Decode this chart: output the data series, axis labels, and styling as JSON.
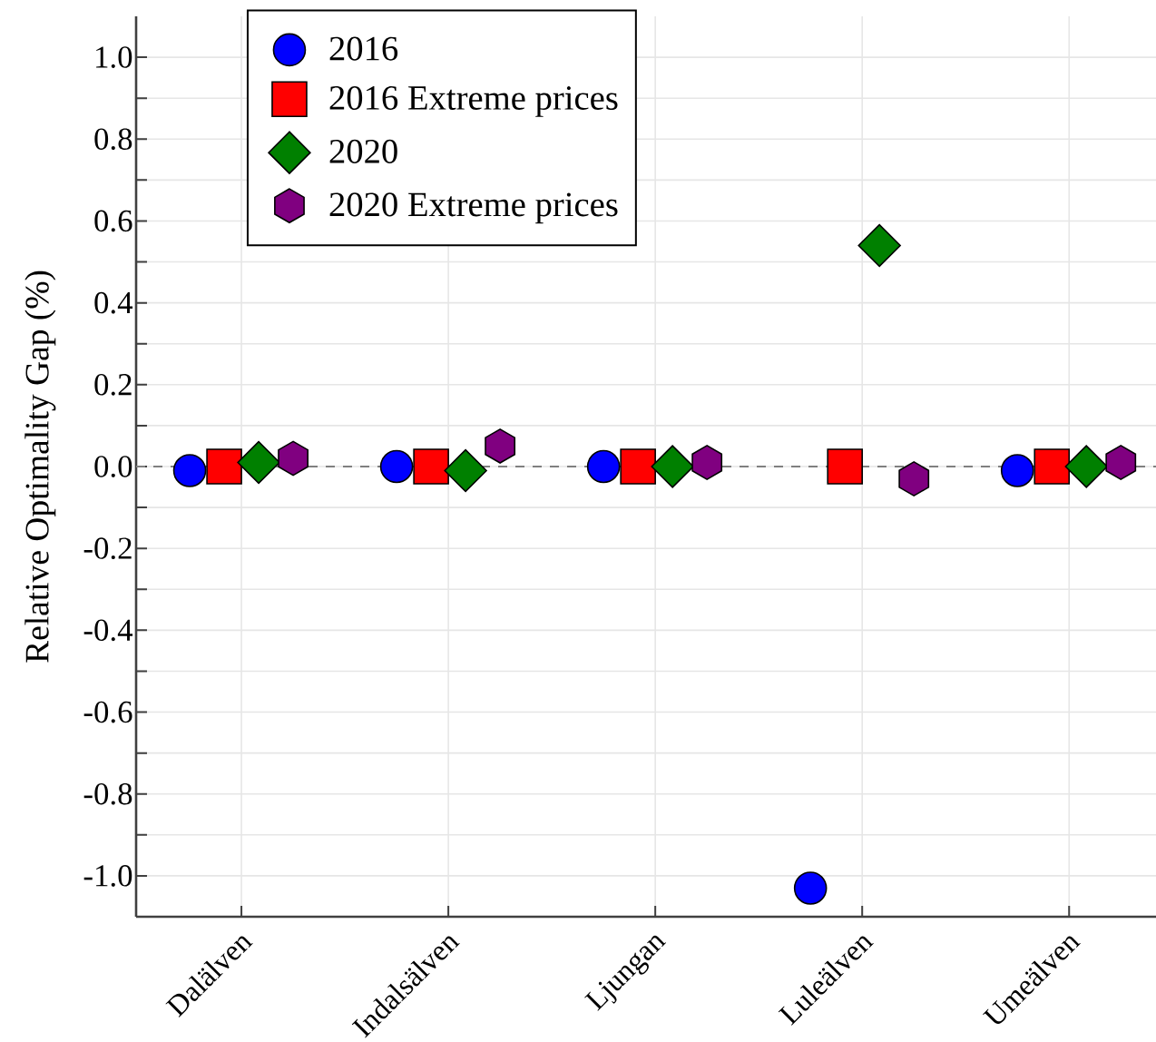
{
  "chart_data": {
    "type": "scatter",
    "ylabel": "Relative Optimality Gap (%)",
    "categories": [
      "Dalälven",
      "Indalsälven",
      "Ljungan",
      "Luleälven",
      "Umeälven"
    ],
    "series": [
      {
        "name": "2016",
        "color": "#0000ff",
        "marker": "circle",
        "values": [
          -0.01,
          0.0,
          0.0,
          -1.03,
          -0.01
        ]
      },
      {
        "name": "2016 Extreme prices",
        "color": "#ff0000",
        "marker": "square",
        "values": [
          0.0,
          0.0,
          0.0,
          0.0,
          0.0
        ]
      },
      {
        "name": "2020",
        "color": "#008000",
        "marker": "diamond",
        "values": [
          0.01,
          -0.01,
          0.0,
          0.54,
          0.0
        ]
      },
      {
        "name": "2020 Extreme prices",
        "color": "#800080",
        "values": [
          0.02,
          0.05,
          0.01,
          -0.03,
          0.01
        ]
      }
    ],
    "ylim": [
      -1.1,
      1.1
    ],
    "yticks": [
      {
        "value": -1.0,
        "label": "-1.0"
      },
      {
        "value": -0.9,
        "label": null
      },
      {
        "value": -0.8,
        "label": "-0.8"
      },
      {
        "value": -0.7,
        "label": null
      },
      {
        "value": -0.6,
        "label": "-0.6"
      },
      {
        "value": -0.5,
        "label": null
      },
      {
        "value": -0.4,
        "label": "-0.4"
      },
      {
        "value": -0.3,
        "label": null
      },
      {
        "value": -0.2,
        "label": "-0.2"
      },
      {
        "value": -0.1,
        "label": null
      },
      {
        "value": 0.0,
        "label": "0.0"
      },
      {
        "value": 0.1,
        "label": null
      },
      {
        "value": 0.2,
        "label": "0.2"
      },
      {
        "value": 0.3,
        "label": null
      },
      {
        "value": 0.4,
        "label": "0.4"
      },
      {
        "value": 0.5,
        "label": null
      },
      {
        "value": 0.6,
        "label": "0.6"
      },
      {
        "value": 0.7,
        "label": null
      },
      {
        "value": 0.8,
        "label": "0.8"
      },
      {
        "value": 0.9,
        "label": null
      },
      {
        "value": 1.0,
        "label": "1.0"
      }
    ],
    "grid": true,
    "legend": "top left",
    "ref_lines": [
      {
        "axis": "y",
        "value": 0,
        "color": "#808080",
        "line_style": "dashed"
      }
    ]
  }
}
